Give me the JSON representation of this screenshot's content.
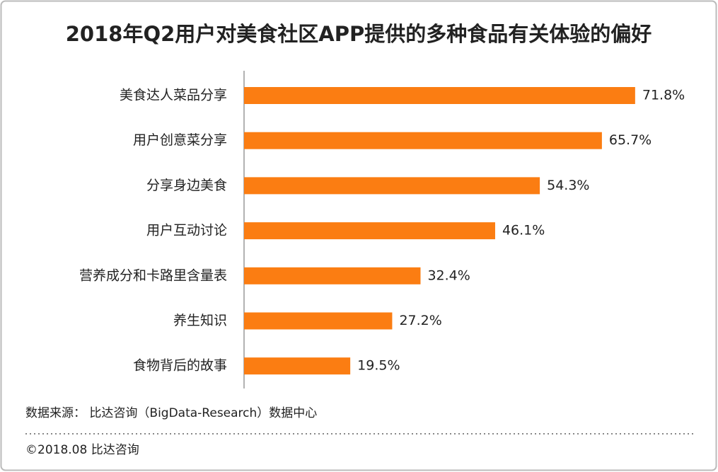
{
  "chart_data": {
    "type": "bar",
    "orientation": "horizontal",
    "title": "2018年Q2用户对美食社区APP提供的多种食品有关体验的偏好",
    "categories": [
      "美食达人菜品分享",
      "用户创意菜分享",
      "分享身边美食",
      "用户互动讨论",
      "营养成分和卡路里含量表",
      "养生知识",
      "食物背后的故事"
    ],
    "values": [
      71.8,
      65.7,
      54.3,
      46.1,
      32.4,
      27.2,
      19.5
    ],
    "value_labels": [
      "71.8%",
      "65.7%",
      "54.3%",
      "46.1%",
      "32.4%",
      "27.2%",
      "19.5%"
    ],
    "color": "#fb7d12",
    "source": "数据来源： 比达咨询（BigData-Research）数据中心",
    "copyright": "©2018.08  比达咨询"
  }
}
